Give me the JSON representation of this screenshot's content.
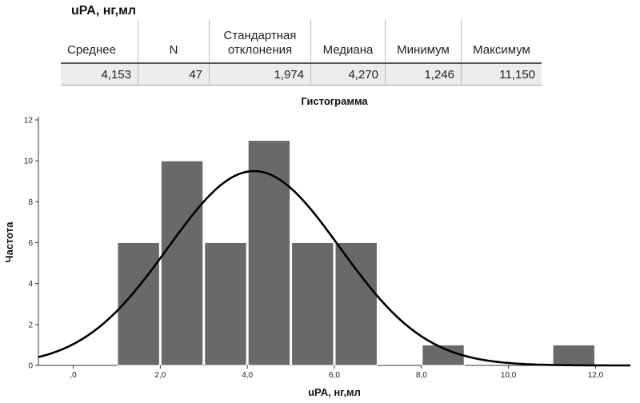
{
  "stats_table": {
    "title": "uPA, нг,мл",
    "headers": [
      "Среднее",
      "N",
      "Стандартная отклонения",
      "Медиана",
      "Минимум",
      "Максимум"
    ],
    "values": [
      "4,153",
      "47",
      "1,974",
      "4,270",
      "1,246",
      "11,150"
    ]
  },
  "chart_data": {
    "type": "bar",
    "title": "Гистограмма",
    "xlabel": "uPA, нг,мл",
    "ylabel": "Частота",
    "xlim": [
      -0.8,
      12.8
    ],
    "ylim": [
      0,
      12
    ],
    "x_ticks": [
      0,
      2,
      4,
      6,
      8,
      10,
      12
    ],
    "x_tick_labels": [
      ",0",
      "2,0",
      "4,0",
      "6,0",
      "8,0",
      "10,0",
      "12,0"
    ],
    "y_ticks": [
      0,
      2,
      4,
      6,
      8,
      10,
      12
    ],
    "y_tick_labels": [
      "0",
      "2",
      "4",
      "6",
      "8",
      "10",
      "12"
    ],
    "bins": [
      {
        "x0": 1,
        "x1": 2,
        "count": 6
      },
      {
        "x0": 2,
        "x1": 3,
        "count": 10
      },
      {
        "x0": 3,
        "x1": 4,
        "count": 6
      },
      {
        "x0": 4,
        "x1": 5,
        "count": 11
      },
      {
        "x0": 5,
        "x1": 6,
        "count": 6
      },
      {
        "x0": 6,
        "x1": 7,
        "count": 6
      },
      {
        "x0": 8,
        "x1": 9,
        "count": 1
      },
      {
        "x0": 11,
        "x1": 12,
        "count": 1
      }
    ],
    "normal_curve": {
      "mean": 4.153,
      "std": 1.974,
      "n": 47,
      "bin_width": 1
    },
    "bar_color": "#696969",
    "curve_color": "#000000",
    "grid": false
  }
}
